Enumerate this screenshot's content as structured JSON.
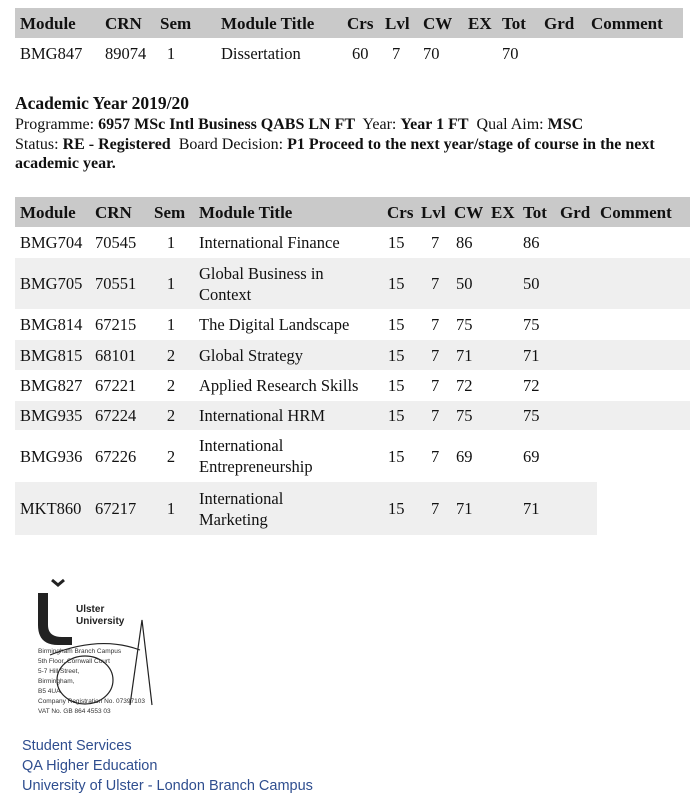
{
  "table1": {
    "headers": [
      "Module",
      "CRN",
      "Sem",
      "Module Title",
      "Crs",
      "Lvl",
      "CW",
      "EX",
      "Tot",
      "Grd",
      "Comment"
    ],
    "rows": [
      [
        "BMG847",
        "89074",
        "1",
        "Dissertation",
        "60",
        "7",
        "70",
        "",
        "70",
        "",
        ""
      ]
    ]
  },
  "year_block": {
    "title": "Academic Year 2019/20",
    "programme_label": "Programme:",
    "programme": "6957 MSc Intl Business QABS LN FT",
    "year_label": "Year:",
    "year": "Year 1 FT",
    "qual_label": "Qual Aim:",
    "qual": "MSC",
    "status_label": "Status:",
    "status": "RE - Registered",
    "board_label": "Board Decision:",
    "board": "P1 Proceed to the next year/stage of course in the next academic year."
  },
  "table2": {
    "headers": [
      "Module",
      "CRN",
      "Sem",
      "Module Title",
      "Crs",
      "Lvl",
      "CW",
      "EX",
      "Tot",
      "Grd",
      "Comment"
    ],
    "rows": [
      [
        "BMG704",
        "70545",
        "1",
        "International Finance",
        "15",
        "7",
        "86",
        "",
        "86",
        "",
        ""
      ],
      [
        "BMG705",
        "70551",
        "1",
        "Global Business in\nContext",
        "15",
        "7",
        "50",
        "",
        "50",
        "",
        ""
      ],
      [
        "BMG814",
        "67215",
        "1",
        "The Digital Landscape",
        "15",
        "7",
        "75",
        "",
        "75",
        "",
        ""
      ],
      [
        "BMG815",
        "68101",
        "2",
        "Global Strategy",
        "15",
        "7",
        "71",
        "",
        "71",
        "",
        ""
      ],
      [
        "BMG827",
        "67221",
        "2",
        "Applied Research Skills",
        "15",
        "7",
        "72",
        "",
        "72",
        "",
        ""
      ],
      [
        "BMG935",
        "67224",
        "2",
        "International HRM",
        "15",
        "7",
        "75",
        "",
        "75",
        "",
        ""
      ],
      [
        "BMG936",
        "67226",
        "2",
        "International\nEntrepreneurship",
        "15",
        "7",
        "69",
        "",
        "69",
        "",
        ""
      ],
      [
        "MKT860",
        "67217",
        "1",
        "International\nMarketing",
        "15",
        "7",
        "71",
        "",
        "71",
        "",
        ""
      ]
    ]
  },
  "stamp": {
    "logo_text": "Ulster University",
    "lines": [
      "Birmingham Branch Campus",
      "5th Floor, Cornwall Court",
      "5-7 Hill Street,",
      "Birmingham,",
      "B5 4UA",
      "Company Registration No. 07397103",
      "VAT No. GB 864 4553 03"
    ]
  },
  "footer": {
    "lines": [
      "Student Services",
      "QA Higher Education",
      "University of Ulster - London Branch Campus"
    ]
  },
  "colors": {
    "header_bg": "#c9c9c9",
    "stripe_bg": "#efefef",
    "footer_text": "#2f4e8f"
  }
}
